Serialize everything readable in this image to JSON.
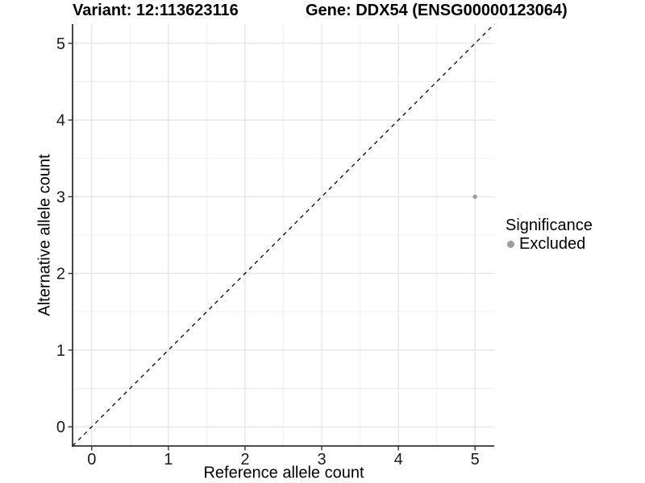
{
  "chart_data": {
    "type": "scatter",
    "title_left": "Variant: 12:113623116",
    "title_right": "Gene: DDX54 (ENSG00000123064)",
    "xlabel": "Reference allele count",
    "ylabel": "Alternative allele count",
    "xlim": [
      -0.25,
      5.25
    ],
    "ylim": [
      -0.25,
      5.25
    ],
    "x_ticks": [
      0,
      1,
      2,
      3,
      4,
      5
    ],
    "y_ticks": [
      0,
      1,
      2,
      3,
      4,
      5
    ],
    "x_minor_ticks": [
      0.5,
      1.5,
      2.5,
      3.5,
      4.5
    ],
    "y_minor_ticks": [
      0.5,
      1.5,
      2.5,
      3.5,
      4.5
    ],
    "grid": true,
    "series": [
      {
        "name": "Excluded",
        "color": "#9e9e9e",
        "points": [
          {
            "x": 5,
            "y": 3
          }
        ]
      }
    ],
    "reference_line": {
      "style": "dashed",
      "color": "#000000",
      "from": [
        -0.25,
        -0.25
      ],
      "to": [
        5.25,
        5.25
      ]
    },
    "legend": {
      "title": "Significance",
      "position": "right",
      "items": [
        {
          "label": "Excluded",
          "color": "#9e9e9e"
        }
      ]
    },
    "colors": {
      "background": "#ffffff",
      "grid_major": "#e3e3e3",
      "grid_minor": "#f0f0f0",
      "axis_line": "#333333",
      "tick_text": "#1a1a1a",
      "point": "#9e9e9e",
      "dashed_line": "#000000"
    }
  }
}
